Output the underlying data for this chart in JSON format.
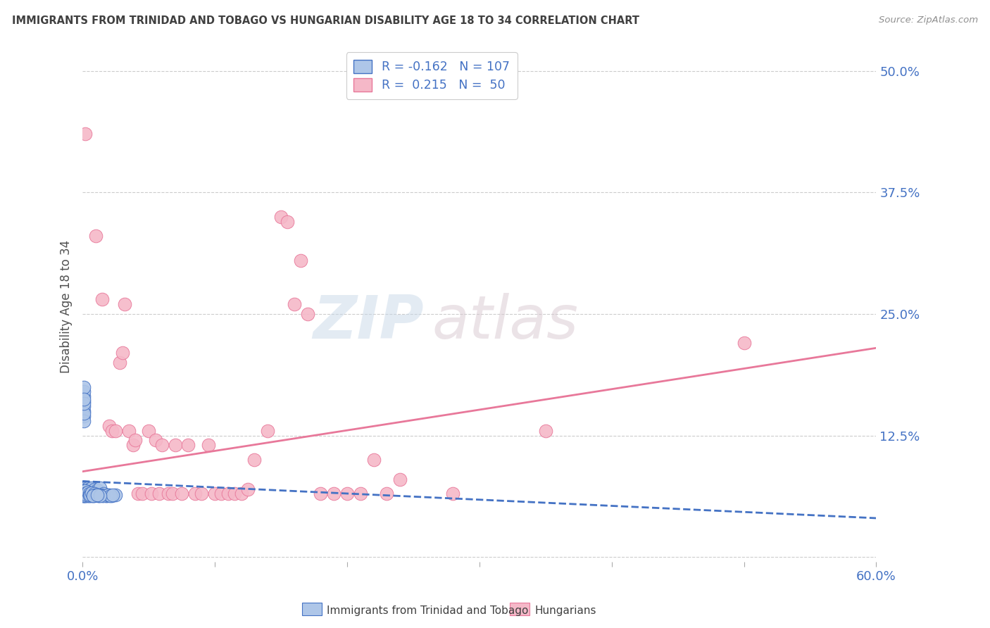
{
  "title": "IMMIGRANTS FROM TRINIDAD AND TOBAGO VS HUNGARIAN DISABILITY AGE 18 TO 34 CORRELATION CHART",
  "source": "Source: ZipAtlas.com",
  "ylabel": "Disability Age 18 to 34",
  "legend_label1": "Immigrants from Trinidad and Tobago",
  "legend_label2": "Hungarians",
  "legend_r1": "R = -0.162",
  "legend_n1": "N = 107",
  "legend_r2": "R =  0.215",
  "legend_n2": "N =  50",
  "blue_color": "#aec6e8",
  "pink_color": "#f5b8c8",
  "blue_line_color": "#4472c4",
  "pink_line_color": "#e8789a",
  "title_color": "#404040",
  "axis_label_color": "#4472c4",
  "source_color": "#909090",
  "background_color": "#ffffff",
  "watermark_zip": "ZIP",
  "watermark_atlas": "atlas",
  "blue_scatter_x": [
    0.0,
    0.001,
    0.0,
    0.001,
    0.001,
    0.001,
    0.002,
    0.001,
    0.001,
    0.0,
    0.001,
    0.001,
    0.001,
    0.001,
    0.001,
    0.001,
    0.001,
    0.001,
    0.001,
    0.001,
    0.001,
    0.001,
    0.002,
    0.002,
    0.002,
    0.002,
    0.002,
    0.002,
    0.002,
    0.002,
    0.002,
    0.003,
    0.003,
    0.003,
    0.003,
    0.003,
    0.003,
    0.004,
    0.004,
    0.004,
    0.004,
    0.004,
    0.005,
    0.005,
    0.005,
    0.006,
    0.006,
    0.006,
    0.007,
    0.007,
    0.008,
    0.008,
    0.009,
    0.009,
    0.01,
    0.01,
    0.011,
    0.011,
    0.012,
    0.013,
    0.0,
    0.0,
    0.0,
    0.001,
    0.001,
    0.001,
    0.001,
    0.001,
    0.001,
    0.001,
    0.001,
    0.001,
    0.001,
    0.001,
    0.002,
    0.002,
    0.002,
    0.003,
    0.003,
    0.004,
    0.005,
    0.005,
    0.006,
    0.007,
    0.008,
    0.009,
    0.01,
    0.012,
    0.015,
    0.016,
    0.018,
    0.02,
    0.022,
    0.025,
    0.015,
    0.012,
    0.018,
    0.02,
    0.01,
    0.008,
    0.014,
    0.016,
    0.019,
    0.021,
    0.023,
    0.013,
    0.011
  ],
  "blue_scatter_y": [
    0.068,
    0.065,
    0.07,
    0.063,
    0.072,
    0.067,
    0.069,
    0.064,
    0.066,
    0.071,
    0.065,
    0.068,
    0.063,
    0.07,
    0.067,
    0.069,
    0.064,
    0.066,
    0.071,
    0.065,
    0.063,
    0.068,
    0.07,
    0.067,
    0.064,
    0.066,
    0.069,
    0.063,
    0.071,
    0.065,
    0.068,
    0.063,
    0.07,
    0.067,
    0.064,
    0.066,
    0.069,
    0.063,
    0.071,
    0.065,
    0.068,
    0.066,
    0.063,
    0.07,
    0.067,
    0.064,
    0.066,
    0.069,
    0.063,
    0.071,
    0.065,
    0.068,
    0.063,
    0.07,
    0.067,
    0.064,
    0.066,
    0.069,
    0.063,
    0.071,
    0.065,
    0.068,
    0.063,
    0.16,
    0.15,
    0.155,
    0.165,
    0.145,
    0.14,
    0.17,
    0.175,
    0.148,
    0.158,
    0.162,
    0.068,
    0.065,
    0.063,
    0.066,
    0.064,
    0.067,
    0.065,
    0.063,
    0.064,
    0.066,
    0.063,
    0.065,
    0.064,
    0.063,
    0.064,
    0.065,
    0.063,
    0.064,
    0.063,
    0.064,
    0.063,
    0.064,
    0.063,
    0.063,
    0.064,
    0.063,
    0.064,
    0.063,
    0.064,
    0.063,
    0.064,
    0.063,
    0.064
  ],
  "pink_scatter_x": [
    0.002,
    0.01,
    0.015,
    0.02,
    0.022,
    0.025,
    0.028,
    0.03,
    0.032,
    0.035,
    0.038,
    0.04,
    0.042,
    0.045,
    0.05,
    0.052,
    0.055,
    0.058,
    0.06,
    0.065,
    0.068,
    0.07,
    0.075,
    0.08,
    0.085,
    0.09,
    0.095,
    0.1,
    0.105,
    0.11,
    0.115,
    0.12,
    0.125,
    0.13,
    0.14,
    0.15,
    0.155,
    0.16,
    0.165,
    0.17,
    0.18,
    0.19,
    0.2,
    0.21,
    0.22,
    0.23,
    0.24,
    0.28,
    0.35,
    0.5
  ],
  "pink_scatter_y": [
    0.435,
    0.33,
    0.265,
    0.135,
    0.13,
    0.13,
    0.2,
    0.21,
    0.26,
    0.13,
    0.115,
    0.12,
    0.065,
    0.065,
    0.13,
    0.065,
    0.12,
    0.065,
    0.115,
    0.065,
    0.065,
    0.115,
    0.065,
    0.115,
    0.065,
    0.065,
    0.115,
    0.065,
    0.065,
    0.065,
    0.065,
    0.065,
    0.07,
    0.1,
    0.13,
    0.35,
    0.345,
    0.26,
    0.305,
    0.25,
    0.065,
    0.065,
    0.065,
    0.065,
    0.1,
    0.065,
    0.08,
    0.065,
    0.13,
    0.22
  ],
  "xlim": [
    0.0,
    0.6
  ],
  "ylim": [
    -0.005,
    0.52
  ],
  "blue_trend": [
    0.0,
    0.6,
    0.078,
    0.04
  ],
  "pink_trend": [
    0.0,
    0.6,
    0.088,
    0.215
  ]
}
